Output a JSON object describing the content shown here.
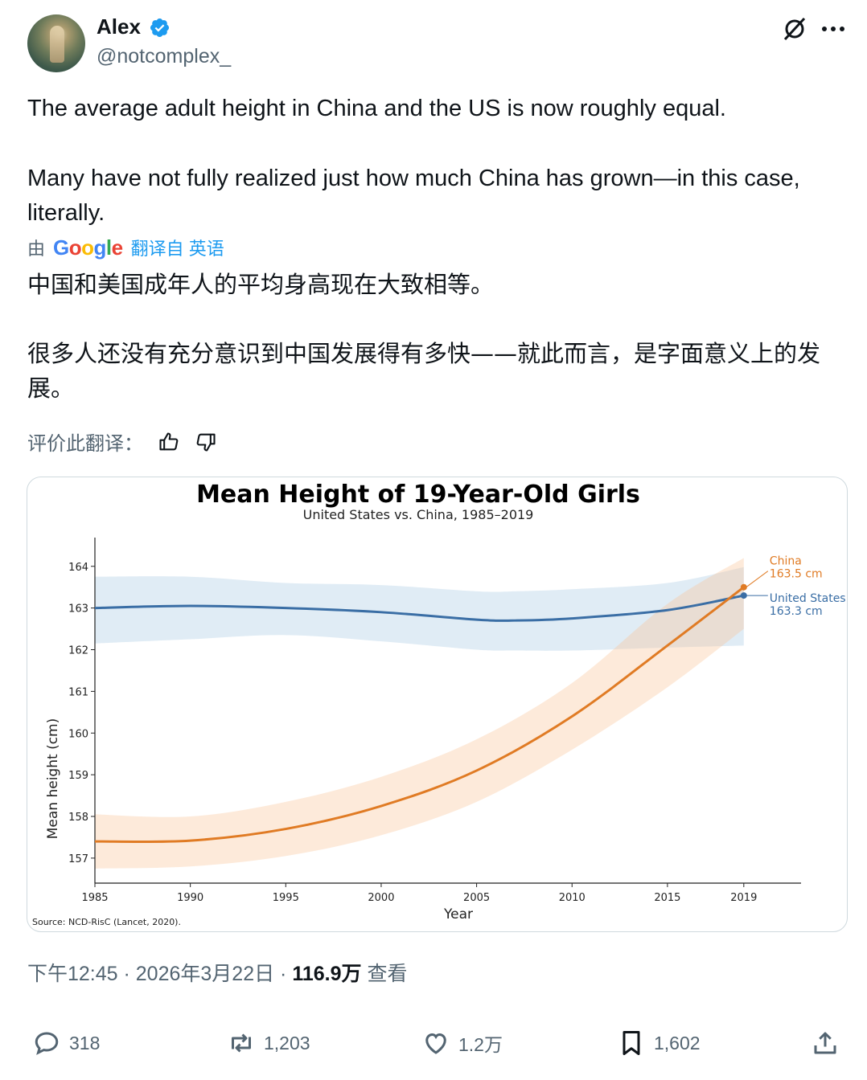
{
  "user": {
    "name": "Alex",
    "handle": "@notcomplex_"
  },
  "tweet": {
    "line1": "The average adult height in China and the US is now roughly equal.",
    "line2": "Many have not fully realized just how much China has grown—in this case, literally.",
    "translated_prefix": "由",
    "google": [
      "G",
      "o",
      "o",
      "g",
      "l",
      "e"
    ],
    "translated_from": "翻译自 英语",
    "zh1": "中国和美国成年人的平均身高现在大致相等。",
    "zh2": "很多人还没有充分意识到中国发展得有多快——就此而言，是字面意义上的发展。",
    "rate_label": "评价此翻译："
  },
  "meta": {
    "time_date": "下午12:45 · 2026年3月22日 · ",
    "views": "116.9万",
    "views_label": " 查看"
  },
  "actions": {
    "replies": "318",
    "reposts": "1,203",
    "likes": "1.2万",
    "bookmarks": "1,602"
  },
  "colors": {
    "us": "#3a6ea5",
    "china": "#e07b24",
    "verified": "#1d9bf0"
  },
  "chart_data": {
    "type": "line",
    "title": "Mean Height of 19-Year-Old Girls",
    "subtitle": "United States vs. China, 1985–2019",
    "xlabel": "Year",
    "ylabel": "Mean height (cm)",
    "xlim": [
      1985,
      2022
    ],
    "ylim": [
      156.4,
      164.4
    ],
    "x_ticks": [
      1985,
      1990,
      1995,
      2000,
      2005,
      2010,
      2015,
      2019
    ],
    "y_ticks": [
      157,
      158,
      159,
      160,
      161,
      162,
      163,
      164
    ],
    "source": "Source: NCD-RisC (Lancet, 2020).",
    "series": [
      {
        "name": "United States",
        "color": "#3a6ea5",
        "x": [
          1985,
          1990,
          1995,
          2000,
          2005,
          2007,
          2010,
          2015,
          2019
        ],
        "y": [
          163.0,
          163.05,
          163.0,
          162.9,
          162.72,
          162.7,
          162.75,
          162.95,
          163.3
        ],
        "band": [
          [
            162.15,
            163.75
          ],
          [
            162.25,
            163.75
          ],
          [
            162.35,
            163.6
          ],
          [
            162.2,
            163.55
          ],
          [
            162.0,
            163.4
          ],
          [
            161.98,
            163.4
          ],
          [
            161.98,
            163.45
          ],
          [
            162.05,
            163.6
          ],
          [
            162.1,
            163.98
          ]
        ],
        "end_label": "United States",
        "end_value": "163.3 cm"
      },
      {
        "name": "China",
        "color": "#e07b24",
        "x": [
          1985,
          1990,
          1995,
          2000,
          2005,
          2010,
          2015,
          2019
        ],
        "y": [
          157.4,
          157.42,
          157.7,
          158.25,
          159.1,
          160.4,
          162.1,
          163.5
        ],
        "band": [
          [
            156.75,
            158.05
          ],
          [
            156.8,
            158.0
          ],
          [
            157.05,
            158.35
          ],
          [
            157.55,
            158.95
          ],
          [
            158.35,
            159.85
          ],
          [
            159.6,
            161.2
          ],
          [
            161.1,
            163.1
          ],
          [
            162.5,
            164.2
          ]
        ],
        "end_label": "China",
        "end_value": "163.5 cm"
      }
    ]
  }
}
